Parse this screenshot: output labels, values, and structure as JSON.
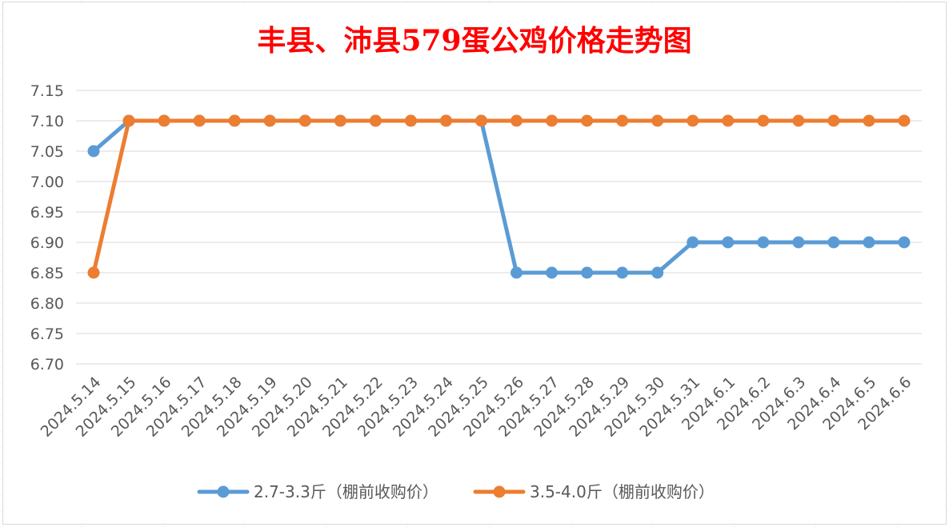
{
  "chart_data": {
    "type": "line",
    "title": "丰县、沛县579蛋公鸡价格走势图",
    "title_color": "#ff0000",
    "xlabel": "",
    "ylabel": "",
    "categories": [
      "2024.5.14",
      "2024.5.15",
      "2024.5.16",
      "2024.5.17",
      "2024.5.18",
      "2024.5.19",
      "2024.5.20",
      "2024.5.21",
      "2024.5.22",
      "2024.5.23",
      "2024.5.24",
      "2024.5.25",
      "2024.5.26",
      "2024.5.27",
      "2024.5.28",
      "2024.5.29",
      "2024.5.30",
      "2024.5.31",
      "2024.6.1",
      "2024.6.2",
      "2024.6.3",
      "2024.6.4",
      "2024.6.5",
      "2024.6.6"
    ],
    "ylim": [
      6.7,
      7.15
    ],
    "yticks": [
      "6.70",
      "6.75",
      "6.80",
      "6.85",
      "6.90",
      "6.95",
      "7.00",
      "7.05",
      "7.10",
      "7.15"
    ],
    "grid": true,
    "legend_position": "bottom",
    "series": [
      {
        "name": "2.7-3.3斤（棚前收购价）",
        "color": "#5b9bd5",
        "values": [
          7.05,
          7.1,
          7.1,
          7.1,
          7.1,
          7.1,
          7.1,
          7.1,
          7.1,
          7.1,
          7.1,
          7.1,
          6.85,
          6.85,
          6.85,
          6.85,
          6.85,
          6.9,
          6.9,
          6.9,
          6.9,
          6.9,
          6.9,
          6.9
        ]
      },
      {
        "name": "3.5-4.0斤（棚前收购价）",
        "color": "#ed7d31",
        "values": [
          6.85,
          7.1,
          7.1,
          7.1,
          7.1,
          7.1,
          7.1,
          7.1,
          7.1,
          7.1,
          7.1,
          7.1,
          7.1,
          7.1,
          7.1,
          7.1,
          7.1,
          7.1,
          7.1,
          7.1,
          7.1,
          7.1,
          7.1,
          7.1
        ]
      }
    ]
  }
}
